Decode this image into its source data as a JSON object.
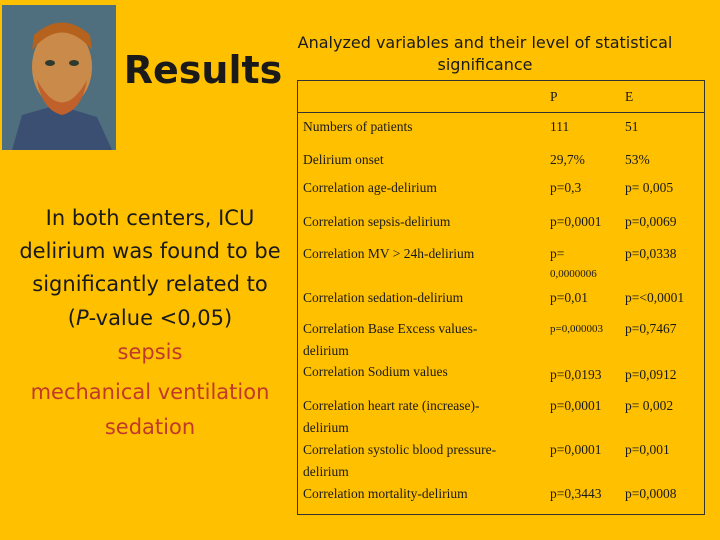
{
  "header": {
    "title": "Results",
    "subtitle": "Analyzed variables and their level of statistical significance"
  },
  "left": {
    "lines": [
      "In both centers, ICU",
      "delirium was found to be",
      "significantly related to"
    ],
    "pline": {
      "prefix": "(",
      "italic": "P",
      "rest": "-value <0,05)"
    },
    "highlights": [
      "sepsis",
      "mechanical ventilation",
      "sedation"
    ]
  },
  "table": {
    "columns": [
      "P",
      "E"
    ],
    "rows": [
      {
        "label": [
          "Numbers of patients"
        ],
        "p": "111",
        "e": "51"
      },
      {
        "label": [
          "Delirium onset"
        ],
        "p": "29,7%",
        "e": "53%"
      },
      {
        "label": [
          "Correlation age-delirium"
        ],
        "p": "p=0,3",
        "e": "p= 0,005"
      },
      {
        "label": [
          "Correlation sepsis-delirium"
        ],
        "p": "p=0,0001",
        "e": "p=0,0069"
      },
      {
        "label": [
          "Correlation MV > 24h-delirium"
        ],
        "p": [
          "p=",
          "0,0000006"
        ],
        "e": "p=0,0338"
      },
      {
        "label": [
          "Correlation sedation-delirium"
        ],
        "p": "p=0,01",
        "e": "p=<0,0001"
      },
      {
        "label": [
          "Correlation Base Excess values-",
          "delirium"
        ],
        "p": "p=0,000003",
        "e": "p=0,7467"
      },
      {
        "label": [
          "Correlation Sodium values"
        ],
        "p": "p=0,0193",
        "e": "p=0,0912"
      },
      {
        "label": [
          "Correlation heart rate (increase)-",
          "delirium"
        ],
        "p": "p=0,0001",
        "e": "p= 0,002"
      },
      {
        "label": [
          "Correlation systolic blood pressure-",
          "delirium"
        ],
        "p": "p=0,0001",
        "e": "p=0,001"
      },
      {
        "label": [
          "Correlation mortality-delirium"
        ],
        "p": "p=0,3443",
        "e": "p=0,0008"
      }
    ]
  }
}
